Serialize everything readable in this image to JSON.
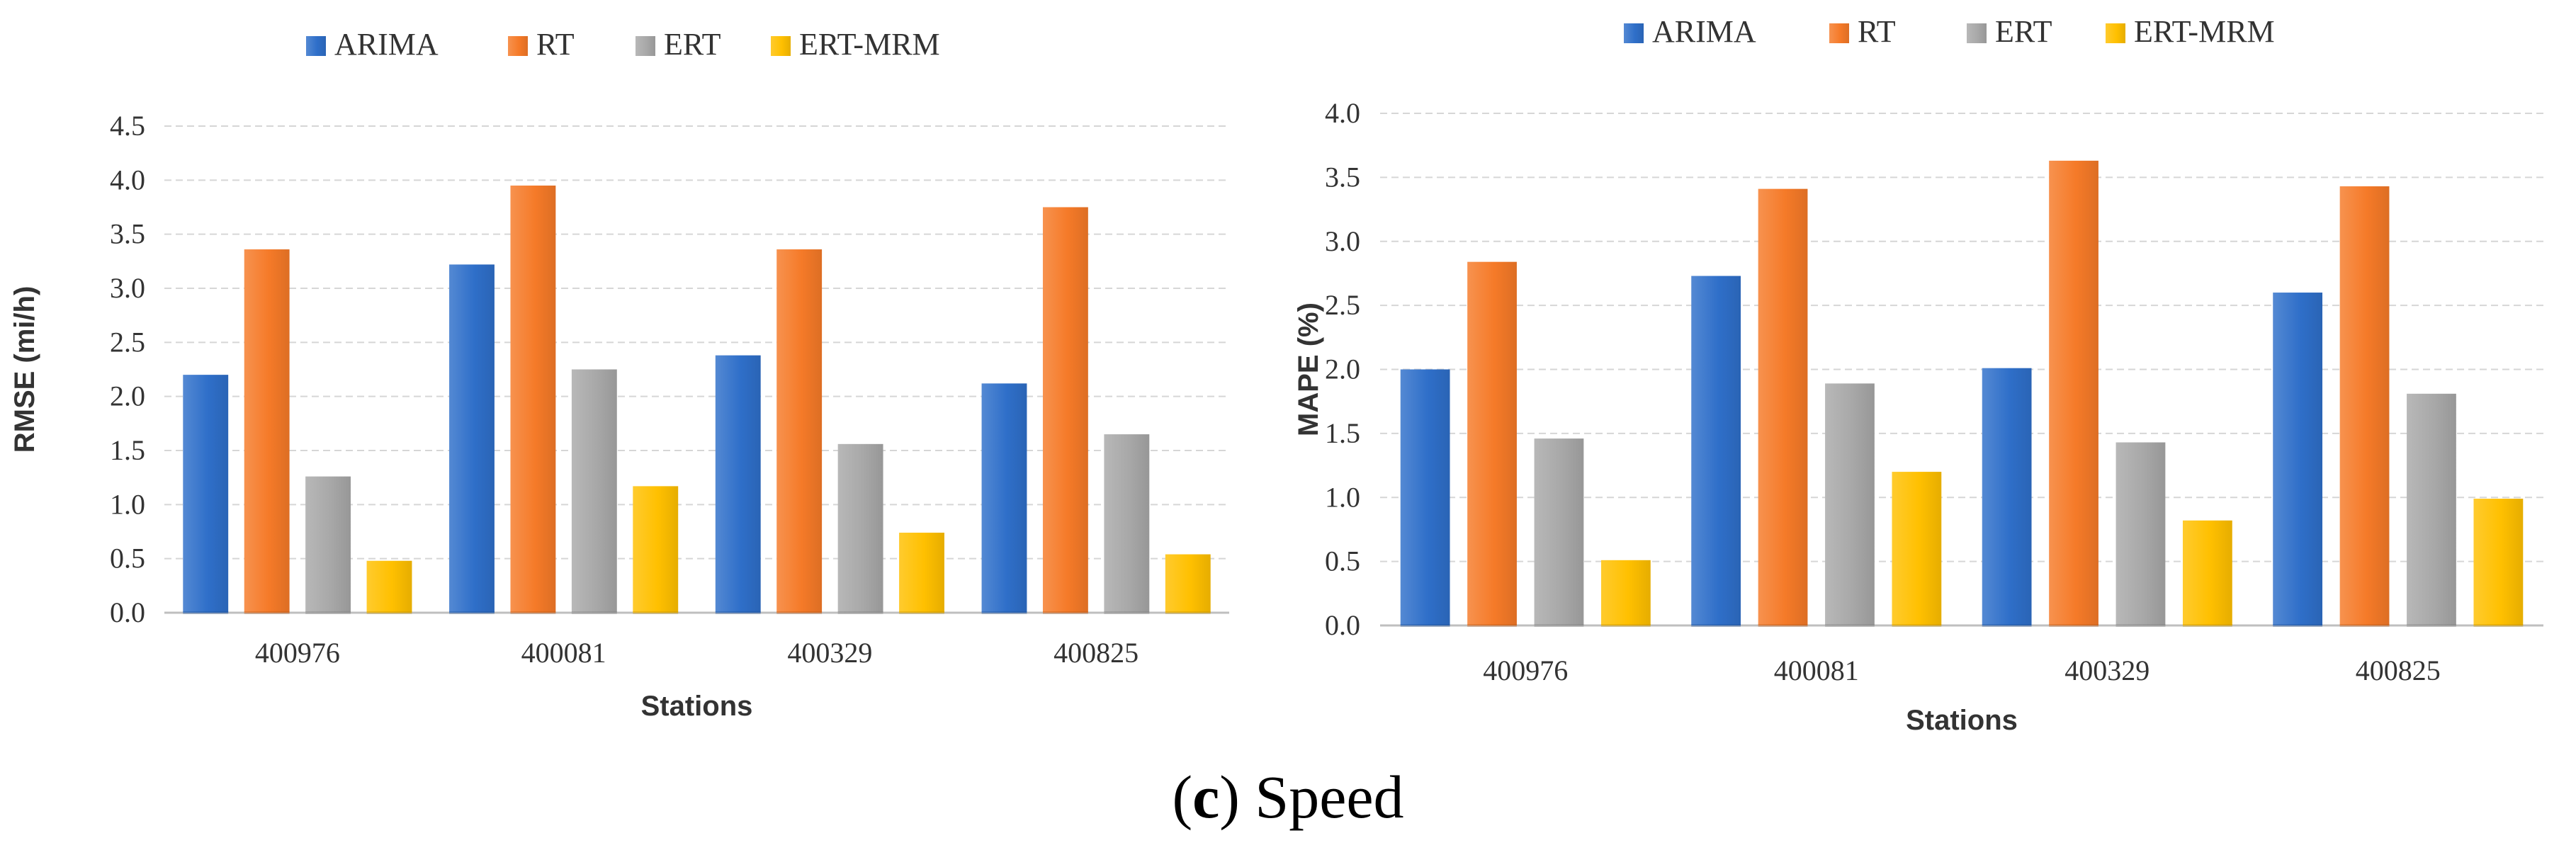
{
  "caption": {
    "label": "c",
    "text": "Speed"
  },
  "colors": {
    "ARIMA": "#2f6fc9",
    "RT": "#f57a28",
    "ERT": "#a8a8a8",
    "ERT-MRM": "#ffc000",
    "grid": "#d6d6d6",
    "axis": "#bfbfbf"
  },
  "chart_data": [
    {
      "type": "bar",
      "title": "",
      "xlabel": "Stations",
      "ylabel": "RMSE (mi/h)",
      "categories": [
        "400976",
        "400081",
        "400329",
        "400825"
      ],
      "ylim": [
        0,
        4.5
      ],
      "yticks": [
        "0.0",
        "0.5",
        "1.0",
        "1.5",
        "2.0",
        "2.5",
        "3.0",
        "3.5",
        "4.0",
        "4.5"
      ],
      "grid": true,
      "legend": "top",
      "series": [
        {
          "name": "ARIMA",
          "values": [
            2.2,
            3.22,
            2.38,
            2.12
          ]
        },
        {
          "name": "RT",
          "values": [
            3.36,
            3.95,
            3.36,
            3.75
          ]
        },
        {
          "name": "ERT",
          "values": [
            1.26,
            2.25,
            1.56,
            1.65
          ]
        },
        {
          "name": "ERT-MRM",
          "values": [
            0.48,
            1.17,
            0.74,
            0.54
          ]
        }
      ]
    },
    {
      "type": "bar",
      "title": "",
      "xlabel": "Stations",
      "ylabel": "MAPE (%)",
      "categories": [
        "400976",
        "400081",
        "400329",
        "400825"
      ],
      "ylim": [
        0,
        4.0
      ],
      "yticks": [
        "0.0",
        "0.5",
        "1.0",
        "1.5",
        "2.0",
        "2.5",
        "3.0",
        "3.5",
        "4.0"
      ],
      "grid": true,
      "legend": "top",
      "series": [
        {
          "name": "ARIMA",
          "values": [
            2.0,
            2.73,
            2.01,
            2.6
          ]
        },
        {
          "name": "RT",
          "values": [
            2.84,
            3.41,
            3.63,
            3.43
          ]
        },
        {
          "name": "ERT",
          "values": [
            1.46,
            1.89,
            1.43,
            1.81
          ]
        },
        {
          "name": "ERT-MRM",
          "values": [
            0.51,
            1.2,
            0.82,
            0.99
          ]
        }
      ]
    }
  ]
}
